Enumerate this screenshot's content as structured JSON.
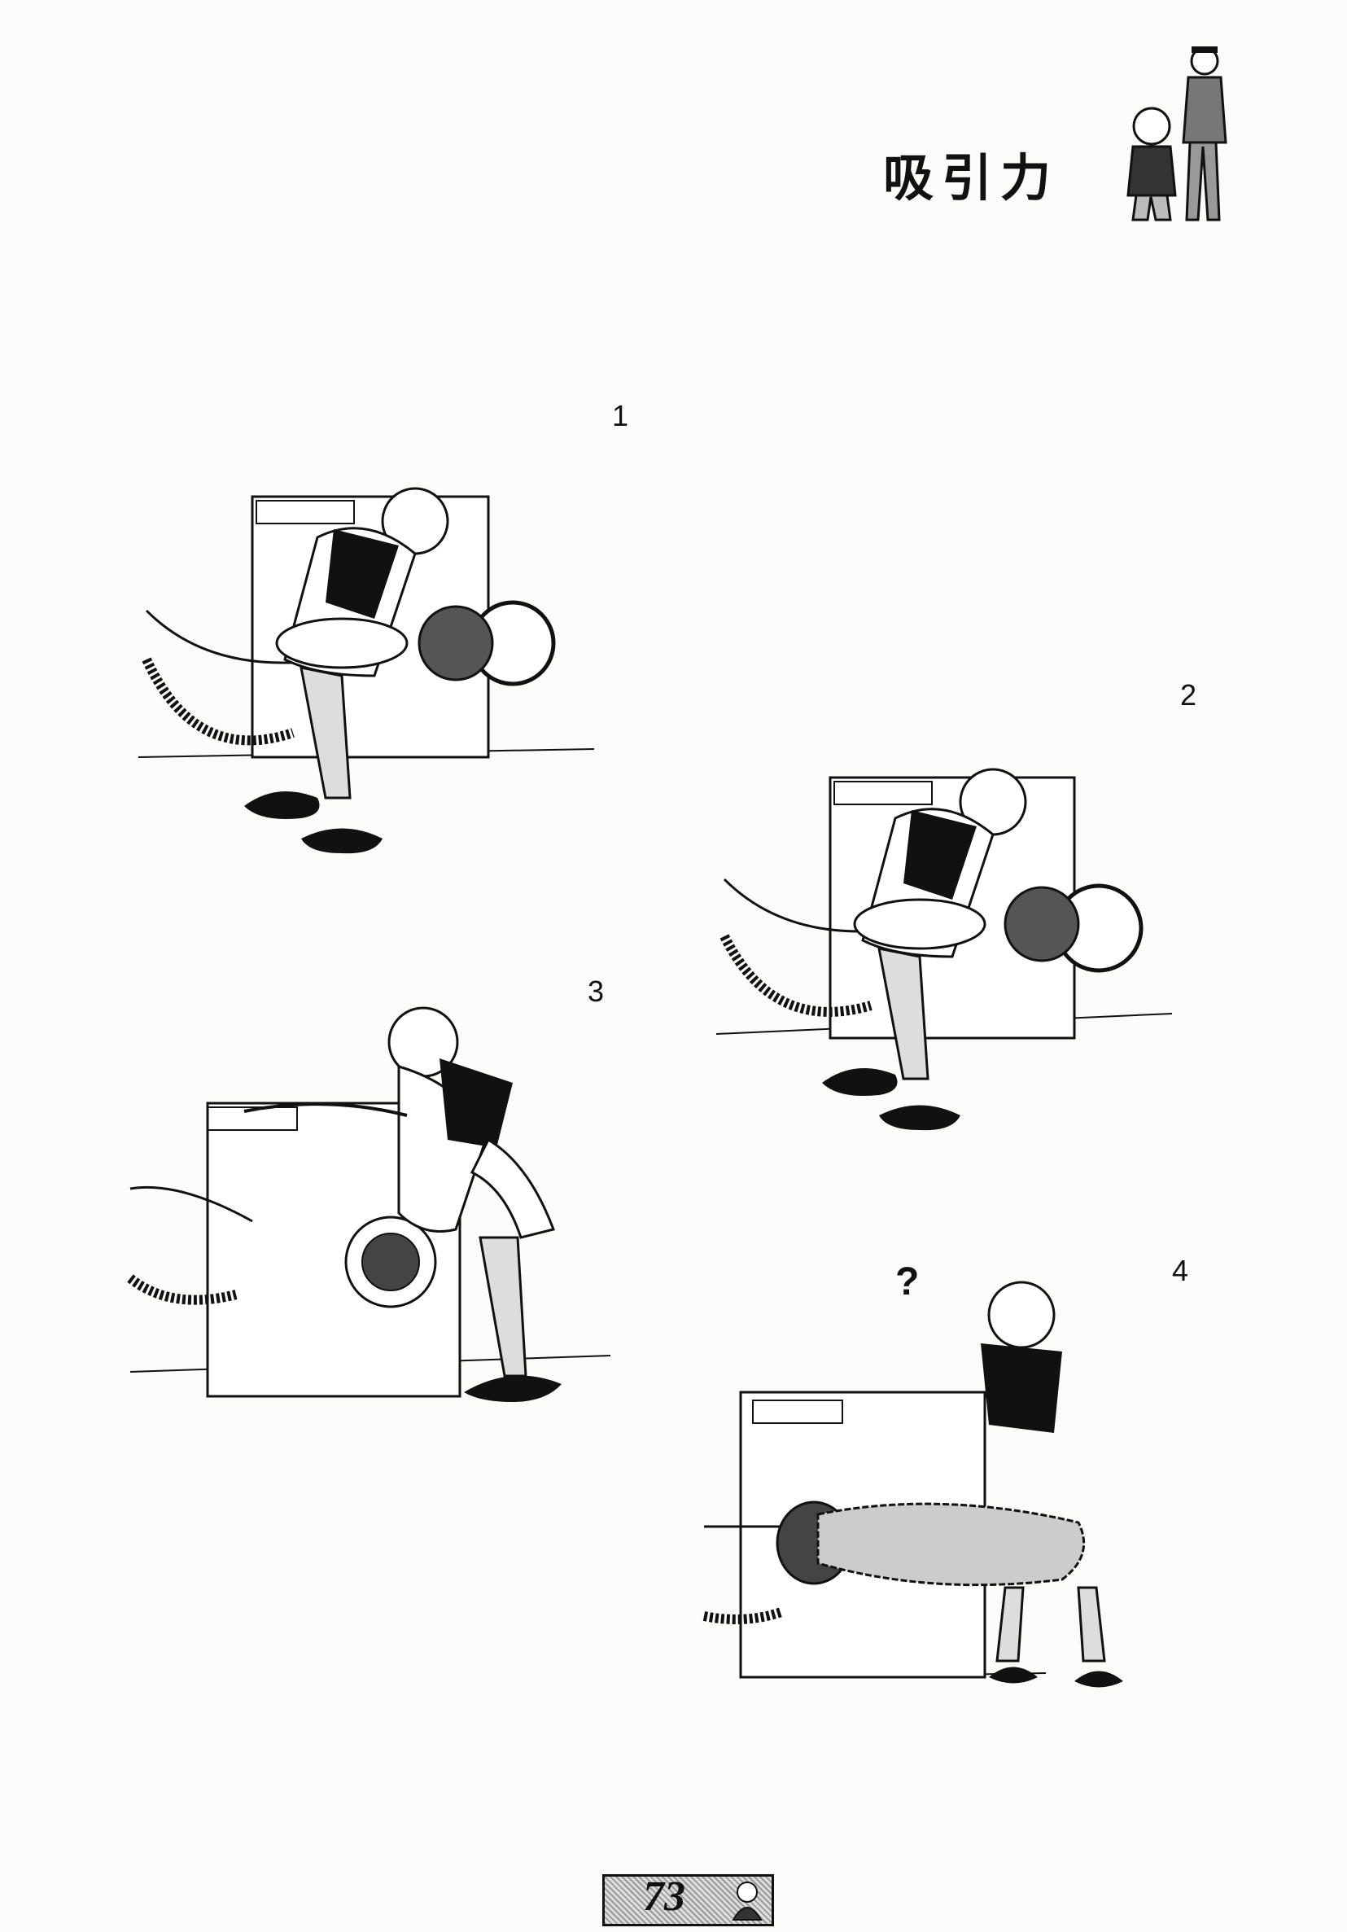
{
  "header": {
    "title": "吸引力"
  },
  "panels": [
    {
      "number": "1"
    },
    {
      "number": "2"
    },
    {
      "number": "3"
    },
    {
      "number": "4"
    }
  ],
  "panel4_symbol": "?",
  "footer": {
    "page_number": "73"
  },
  "icons": {
    "header_art": "two-characters-icon",
    "footer_art": "man-portrait-icon"
  }
}
